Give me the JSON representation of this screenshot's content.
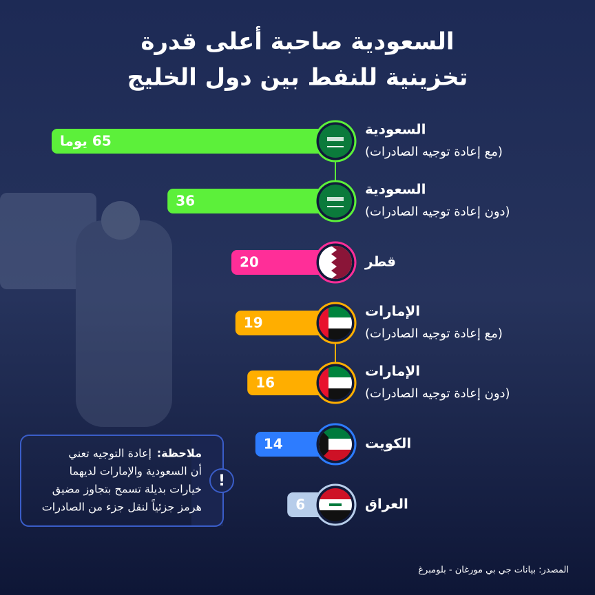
{
  "chart_data": {
    "type": "bar",
    "title": [
      "السعودية صاحبة أعلى قدرة",
      "تخزينية للنفط بين دول الخليج"
    ],
    "categories": [
      "السعودية",
      "السعودية",
      "قطر",
      "الإمارات",
      "الإمارات",
      "الكويت",
      "العراق"
    ],
    "category_subtitles": [
      "(مع إعادة توجيه الصادرات)",
      "(دون إعادة توجيه الصادرات)",
      null,
      "(مع إعادة توجيه الصادرات)",
      "(دون إعادة توجيه الصادرات)",
      null,
      null
    ],
    "values": [
      65,
      36,
      20,
      19,
      16,
      14,
      6
    ],
    "value_labels": [
      "65 يوما",
      "36",
      "20",
      "19",
      "16",
      "14",
      "6"
    ],
    "colors": [
      "#5cf03a",
      "#5cf03a",
      "#ff2e98",
      "#ffae00",
      "#ffae00",
      "#2d7cff",
      "#b7cdea"
    ],
    "note": {
      "label": "ملاحظة:",
      "lines": [
        "إعادة التوجيه تعني",
        "أن السعودية والإمارات لديهما",
        "خيارات بديلة تسمح بتجاوز مضيق",
        "هرمز جزئياً لنقل جزء من الصادرات"
      ]
    },
    "source": "المصدر: بيانات جي بي مورغان - بلومبرغ"
  }
}
